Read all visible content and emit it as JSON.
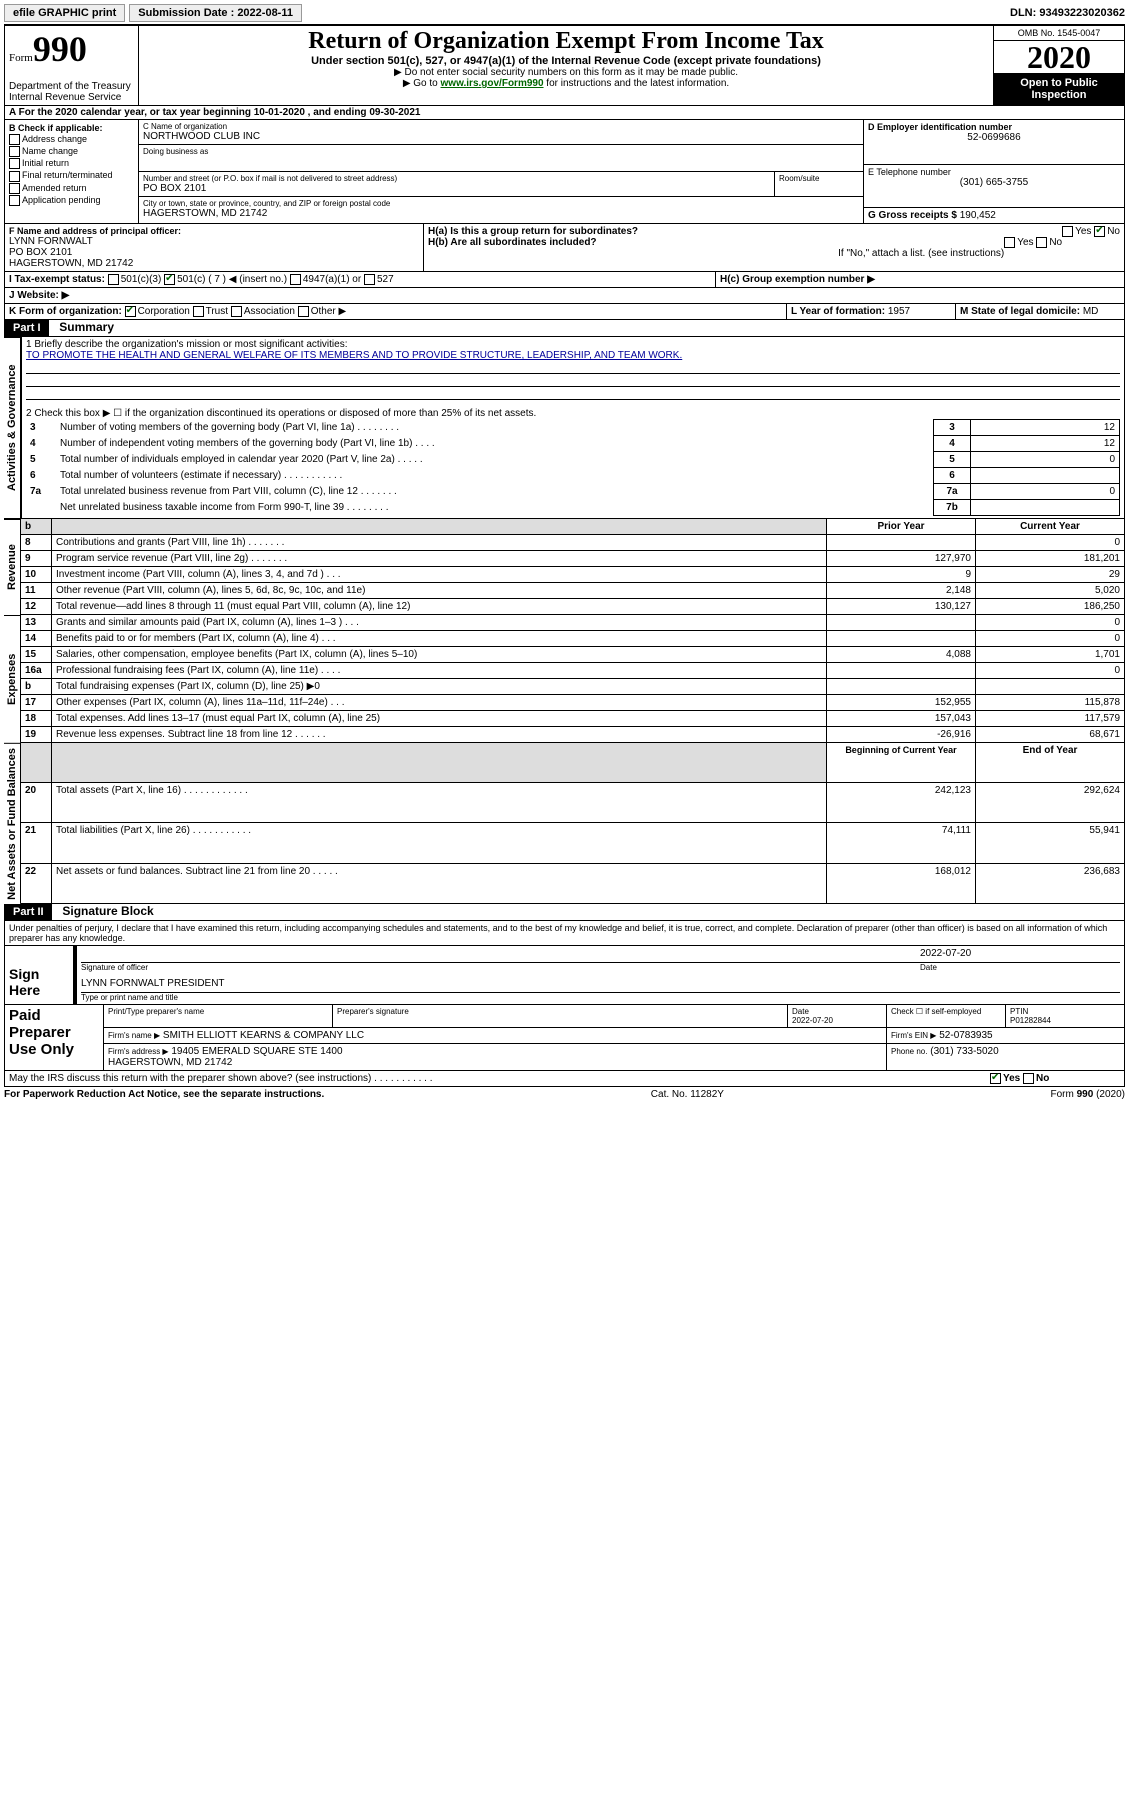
{
  "topbar": {
    "efile": "efile GRAPHIC print",
    "submission": "Submission Date : 2022-08-11",
    "dln": "DLN: 93493223020362"
  },
  "header": {
    "form": "Form",
    "formnum": "990",
    "dept": "Department of the Treasury\nInternal Revenue Service",
    "title": "Return of Organization Exempt From Income Tax",
    "sub": "Under section 501(c), 527, or 4947(a)(1) of the Internal Revenue Code (except private foundations)",
    "note1": "▶ Do not enter social security numbers on this form as it may be made public.",
    "note2_pre": "▶ Go to ",
    "note2_link": "www.irs.gov/Form990",
    "note2_post": " for instructions and the latest information.",
    "omb": "OMB No. 1545-0047",
    "year": "2020",
    "inspect": "Open to Public Inspection"
  },
  "sectionA": "A For the 2020 calendar year, or tax year beginning 10-01-2020    , and ending 09-30-2021",
  "b": {
    "title": "B Check if applicable:",
    "items": [
      "Address change",
      "Name change",
      "Initial return",
      "Final return/terminated",
      "Amended return",
      "Application pending"
    ]
  },
  "c": {
    "label": "C Name of organization",
    "name": "NORTHWOOD CLUB INC",
    "dba": "Doing business as",
    "street_label": "Number and street (or P.O. box if mail is not delivered to street address)",
    "room": "Room/suite",
    "street": "PO BOX 2101",
    "city_label": "City or town, state or province, country, and ZIP or foreign postal code",
    "city": "HAGERSTOWN, MD  21742"
  },
  "d": {
    "label": "D Employer identification number",
    "value": "52-0699686"
  },
  "e": {
    "label": "E Telephone number",
    "value": "(301) 665-3755"
  },
  "g": {
    "label": "G Gross receipts $",
    "value": "190,452"
  },
  "f": {
    "label": "F Name and address of principal officer:",
    "lines": [
      "LYNN FORNWALT",
      "PO BOX 2101",
      "HAGERSTOWN, MD  21742"
    ]
  },
  "h": {
    "a": "H(a)  Is this a group return for subordinates?",
    "b": "H(b)  Are all subordinates included?",
    "note": "If \"No,\" attach a list. (see instructions)",
    "c": "H(c)  Group exemption number ▶"
  },
  "i": {
    "label": "I     Tax-exempt status:",
    "opts": [
      "501(c)(3)",
      "501(c) ( 7 ) ◀ (insert no.)",
      "4947(a)(1) or",
      "527"
    ]
  },
  "j": "J    Website: ▶",
  "k": {
    "label": "K Form of organization:",
    "opts": [
      "Corporation",
      "Trust",
      "Association",
      "Other ▶"
    ]
  },
  "l": {
    "label": "L Year of formation:",
    "value": "1957"
  },
  "m": {
    "label": "M State of legal domicile:",
    "value": "MD"
  },
  "part1": {
    "hdr": "Part I",
    "title": "Summary",
    "q1_label": "1   Briefly describe the organization's mission or most significant activities:",
    "q1_text": "TO PROMOTE THE HEALTH AND GENERAL WELFARE OF ITS MEMBERS AND TO PROVIDE STRUCTURE, LEADERSHIP, AND TEAM WORK.",
    "q2": "2   Check this box ▶ ☐  if the organization discontinued its operations or disposed of more than 25% of its net assets.",
    "rows": [
      {
        "n": "3",
        "t": "Number of voting members of the governing body (Part VI, line 1a)   .    .    .    .    .    .    .    .",
        "box": "3",
        "v": "12"
      },
      {
        "n": "4",
        "t": "Number of independent voting members of the governing body (Part VI, line 1b)   .    .    .    .",
        "box": "4",
        "v": "12"
      },
      {
        "n": "5",
        "t": "Total number of individuals employed in calendar year 2020 (Part V, line 2a)   .    .    .    .    .",
        "box": "5",
        "v": "0"
      },
      {
        "n": "6",
        "t": "Total number of volunteers (estimate if necessary)   .    .    .    .    .    .    .    .    .    .    .",
        "box": "6",
        "v": ""
      },
      {
        "n": "7a",
        "t": "Total unrelated business revenue from Part VIII, column (C), line 12   .    .    .    .    .    .    .",
        "box": "7a",
        "v": "0"
      },
      {
        "n": "",
        "t": "Net unrelated business taxable income from Form 990-T, line 39   .    .    .    .    .    .    .    .",
        "box": "7b",
        "v": ""
      }
    ],
    "col_hdr_prior": "Prior Year",
    "col_hdr_curr": "Current Year",
    "rev": [
      {
        "n": "8",
        "t": "Contributions and grants (Part VIII, line 1h)   .    .    .    .    .    .    .",
        "p": "",
        "c": "0"
      },
      {
        "n": "9",
        "t": "Program service revenue (Part VIII, line 2g)   .    .    .    .    .    .    .",
        "p": "127,970",
        "c": "181,201"
      },
      {
        "n": "10",
        "t": "Investment income (Part VIII, column (A), lines 3, 4, and 7d )   .    .    .",
        "p": "9",
        "c": "29"
      },
      {
        "n": "11",
        "t": "Other revenue (Part VIII, column (A), lines 5, 6d, 8c, 9c, 10c, and 11e)",
        "p": "2,148",
        "c": "5,020"
      },
      {
        "n": "12",
        "t": "Total revenue—add lines 8 through 11 (must equal Part VIII, column (A), line 12)",
        "p": "130,127",
        "c": "186,250"
      }
    ],
    "exp": [
      {
        "n": "13",
        "t": "Grants and similar amounts paid (Part IX, column (A), lines 1–3 )   .    .    .",
        "p": "",
        "c": "0"
      },
      {
        "n": "14",
        "t": "Benefits paid to or for members (Part IX, column (A), line 4)   .    .    .",
        "p": "",
        "c": "0"
      },
      {
        "n": "15",
        "t": "Salaries, other compensation, employee benefits (Part IX, column (A), lines 5–10)",
        "p": "4,088",
        "c": "1,701"
      },
      {
        "n": "16a",
        "t": "Professional fundraising fees (Part IX, column (A), line 11e)    .    .    .    .",
        "p": "",
        "c": "0"
      },
      {
        "n": "b",
        "t": "Total fundraising expenses (Part IX, column (D), line 25) ▶0",
        "p": "",
        "c": "",
        "shaded": true
      },
      {
        "n": "17",
        "t": "Other expenses (Part IX, column (A), lines 11a–11d, 11f–24e)   .    .    .",
        "p": "152,955",
        "c": "115,878"
      },
      {
        "n": "18",
        "t": "Total expenses. Add lines 13–17 (must equal Part IX, column (A), line 25)",
        "p": "157,043",
        "c": "117,579"
      },
      {
        "n": "19",
        "t": "Revenue less expenses. Subtract line 18 from line 12   .    .    .    .    .    .",
        "p": "-26,916",
        "c": "68,671"
      }
    ],
    "col_hdr_boy": "Beginning of Current Year",
    "col_hdr_eoy": "End of Year",
    "net": [
      {
        "n": "20",
        "t": "Total assets (Part X, line 16)   .    .    .    .    .    .    .    .    .    .    .    .",
        "p": "242,123",
        "c": "292,624"
      },
      {
        "n": "21",
        "t": "Total liabilities (Part X, line 26)   .    .    .    .    .    .    .    .    .    .    .",
        "p": "74,111",
        "c": "55,941"
      },
      {
        "n": "22",
        "t": "Net assets or fund balances. Subtract line 21 from line 20   .    .    .    .    .",
        "p": "168,012",
        "c": "236,683"
      }
    ],
    "side_ag": "Activities & Governance",
    "side_rev": "Revenue",
    "side_exp": "Expenses",
    "side_net": "Net Assets or Fund Balances"
  },
  "part2": {
    "hdr": "Part II",
    "title": "Signature Block",
    "decl": "Under penalties of perjury, I declare that I have examined this return, including accompanying schedules and statements, and to the best of my knowledge and belief, it is true, correct, and complete. Declaration of preparer (other than officer) is based on all information of which preparer has any knowledge.",
    "sign_here": "Sign Here",
    "sig_off": "Signature of officer",
    "date": "Date",
    "date_v": "2022-07-20",
    "officer": "LYNN FORNWALT PRESIDENT",
    "type_name": "Type or print name and title",
    "paid": "Paid Preparer Use Only",
    "p_name_h": "Print/Type preparer's name",
    "p_sig_h": "Preparer's signature",
    "p_date_h": "Date",
    "p_date_v": "2022-07-20",
    "p_check": "Check ☐ if self-employed",
    "ptin_h": "PTIN",
    "ptin_v": "P01282844",
    "firm_name_h": "Firm's name     ▶",
    "firm_name": "SMITH ELLIOTT KEARNS & COMPANY LLC",
    "firm_ein_h": "Firm's EIN ▶",
    "firm_ein": "52-0783935",
    "firm_addr_h": "Firm's address ▶",
    "firm_addr": "19405 EMERALD SQUARE STE 1400\nHAGERSTOWN, MD  21742",
    "phone_h": "Phone no.",
    "phone": "(301) 733-5020",
    "discuss": "May the IRS discuss this return with the preparer shown above? (see instructions)    .    .    .    .    .    .    .    .    .    .    .",
    "yes": "Yes",
    "no": "No"
  },
  "footer": {
    "left": "For Paperwork Reduction Act Notice, see the separate instructions.",
    "mid": "Cat. No. 11282Y",
    "right": "Form 990 (2020)"
  }
}
